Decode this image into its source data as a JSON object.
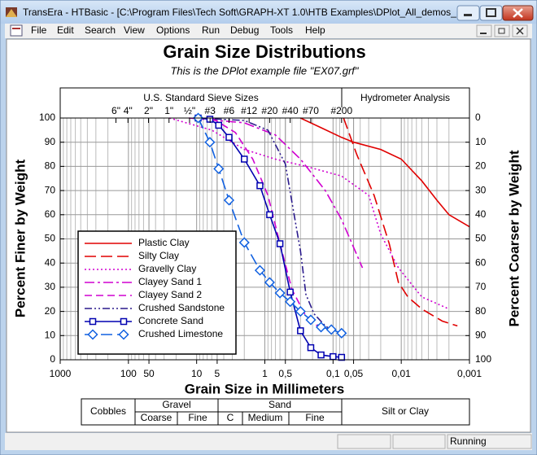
{
  "window_title": "TransEra - HTBasic - [C:\\Program Files\\Tech Soft\\GRAPH-XT 1.0\\HTB Examples\\DPlot_All_demos_...",
  "menu": [
    "File",
    "Edit",
    "Search",
    "View",
    "Options",
    "Run",
    "Debug",
    "Tools",
    "Help"
  ],
  "status": "Running",
  "chart_data": {
    "type": "line",
    "title": "Grain Size Distributions",
    "subtitle": "This is the DPlot example file \"EX07.grf\"",
    "x_label": "Grain Size in Millimeters",
    "y_label": "Percent Finer by Weight",
    "y2_label": "Percent Coarser by Weight",
    "x_log": true,
    "grid": true,
    "legend": "lower left",
    "xlim": [
      1000,
      0.001
    ],
    "xticks": [
      1000,
      100,
      50,
      10,
      5,
      1,
      {
        "value": 0.5,
        "label": "0,5"
      },
      {
        "value": 0.1,
        "label": "0,1"
      },
      {
        "value": 0.05,
        "label": "0,05"
      },
      {
        "value": 0.01,
        "label": "0,01"
      },
      {
        "value": 0.001,
        "label": "0,001"
      }
    ],
    "ylim": [
      0,
      100
    ],
    "yticks": [
      0,
      10,
      20,
      30,
      40,
      50,
      60,
      70,
      80,
      90,
      100
    ],
    "y2lim": [
      100,
      0
    ],
    "y2ticks": [
      0,
      10,
      20,
      30,
      40,
      50,
      60,
      70,
      80,
      90,
      100
    ],
    "header_left": "U.S. Standard Sieve Sizes",
    "header_right": "Hydrometer Analysis",
    "sieve_ticks": [
      {
        "value": 152.4,
        "label": "6\""
      },
      {
        "value": 101.6,
        "label": "4\""
      },
      {
        "value": 50.8,
        "label": "2\""
      },
      {
        "value": 25.4,
        "label": "1\""
      },
      {
        "value": 12.7,
        "label": "½\""
      },
      {
        "value": 6.35,
        "label": "#3"
      },
      {
        "value": 3.35,
        "label": "#6"
      },
      {
        "value": 1.7,
        "label": "#12"
      },
      {
        "value": 0.85,
        "label": "#20"
      },
      {
        "value": 0.425,
        "label": "#40"
      },
      {
        "value": 0.212,
        "label": "#70"
      },
      {
        "value": 0.075,
        "label": "#200"
      }
    ],
    "series": [
      {
        "name": "Plastic Clay",
        "color": "#e00000",
        "dash": "solid",
        "x": [
          0.3,
          0.15,
          0.075,
          0.05,
          0.02,
          0.01,
          0.005,
          0.003,
          0.002,
          0.001
        ],
        "values": [
          100,
          96,
          92,
          90,
          87,
          83,
          74,
          66,
          60,
          55
        ]
      },
      {
        "name": "Silty Clay",
        "color": "#e00000",
        "dash": "longdash",
        "x": [
          0.07,
          0.045,
          0.025,
          0.015,
          0.011,
          0.008,
          0.005,
          0.0025,
          0.0015
        ],
        "values": [
          100,
          85,
          68,
          48,
          32,
          26,
          21,
          16,
          14
        ]
      },
      {
        "name": "Gravelly Clay",
        "color": "#d000d0",
        "dash": "dot",
        "x": [
          25,
          6,
          2,
          0.7,
          0.25,
          0.075,
          0.03,
          0.02,
          0.011,
          0.005,
          0.002
        ],
        "values": [
          100,
          95,
          87,
          83,
          80,
          76,
          68,
          52,
          38,
          26,
          21
        ]
      },
      {
        "name": "Clayey Sand 1",
        "color": "#d000d0",
        "dash": "dashdot",
        "x": [
          13,
          2,
          0.7,
          0.3,
          0.13,
          0.075,
          0.037
        ],
        "values": [
          100,
          98,
          93,
          83,
          70,
          58,
          38
        ]
      },
      {
        "name": "Clayey Sand 2",
        "color": "#d000d0",
        "dash": "dash",
        "x": [
          6,
          2.7,
          1.5,
          0.9,
          0.6,
          0.4,
          0.26,
          0.17
        ],
        "values": [
          100,
          94,
          83,
          68,
          48,
          29,
          19,
          14
        ]
      },
      {
        "name": "Crushed Sandstone",
        "color": "#2a1a8c",
        "dash": "dashdotdot",
        "x": [
          10,
          2,
          0.9,
          0.5,
          0.4,
          0.3,
          0.25,
          0.19,
          0.13,
          0.1
        ],
        "values": [
          100,
          99,
          95,
          81,
          65,
          45,
          27,
          19,
          14,
          12
        ]
      },
      {
        "name": "Concrete Sand",
        "color": "#0000b0",
        "dash": "solid",
        "marker": "square",
        "x": [
          9.5,
          6.4,
          4.75,
          3.35,
          2,
          1.18,
          0.85,
          0.6,
          0.425,
          0.3,
          0.212,
          0.15,
          0.1,
          0.075
        ],
        "values": [
          100,
          99.5,
          97,
          92,
          83,
          72,
          60,
          48,
          28,
          12,
          5,
          2,
          1.3,
          1
        ]
      },
      {
        "name": "Crushed Limestone",
        "color": "#1060e0",
        "dash": "longdash",
        "marker": "diamond",
        "x": [
          9.5,
          6.4,
          4.75,
          3.35,
          2,
          1.18,
          0.85,
          0.6,
          0.425,
          0.3,
          0.212,
          0.15,
          0.106,
          0.075
        ],
        "values": [
          100,
          90,
          79,
          66,
          48.5,
          37,
          32,
          27.6,
          24,
          20,
          16.5,
          13.5,
          12.5,
          11
        ]
      }
    ]
  },
  "classification": {
    "cobbles": "Cobbles",
    "gravel": "Gravel",
    "gravel_coarse": "Coarse",
    "gravel_fine": "Fine",
    "sand": "Sand",
    "sand_coarse": "C",
    "sand_medium": "Medium",
    "sand_fine": "Fine",
    "silt_clay": "Silt or Clay"
  }
}
